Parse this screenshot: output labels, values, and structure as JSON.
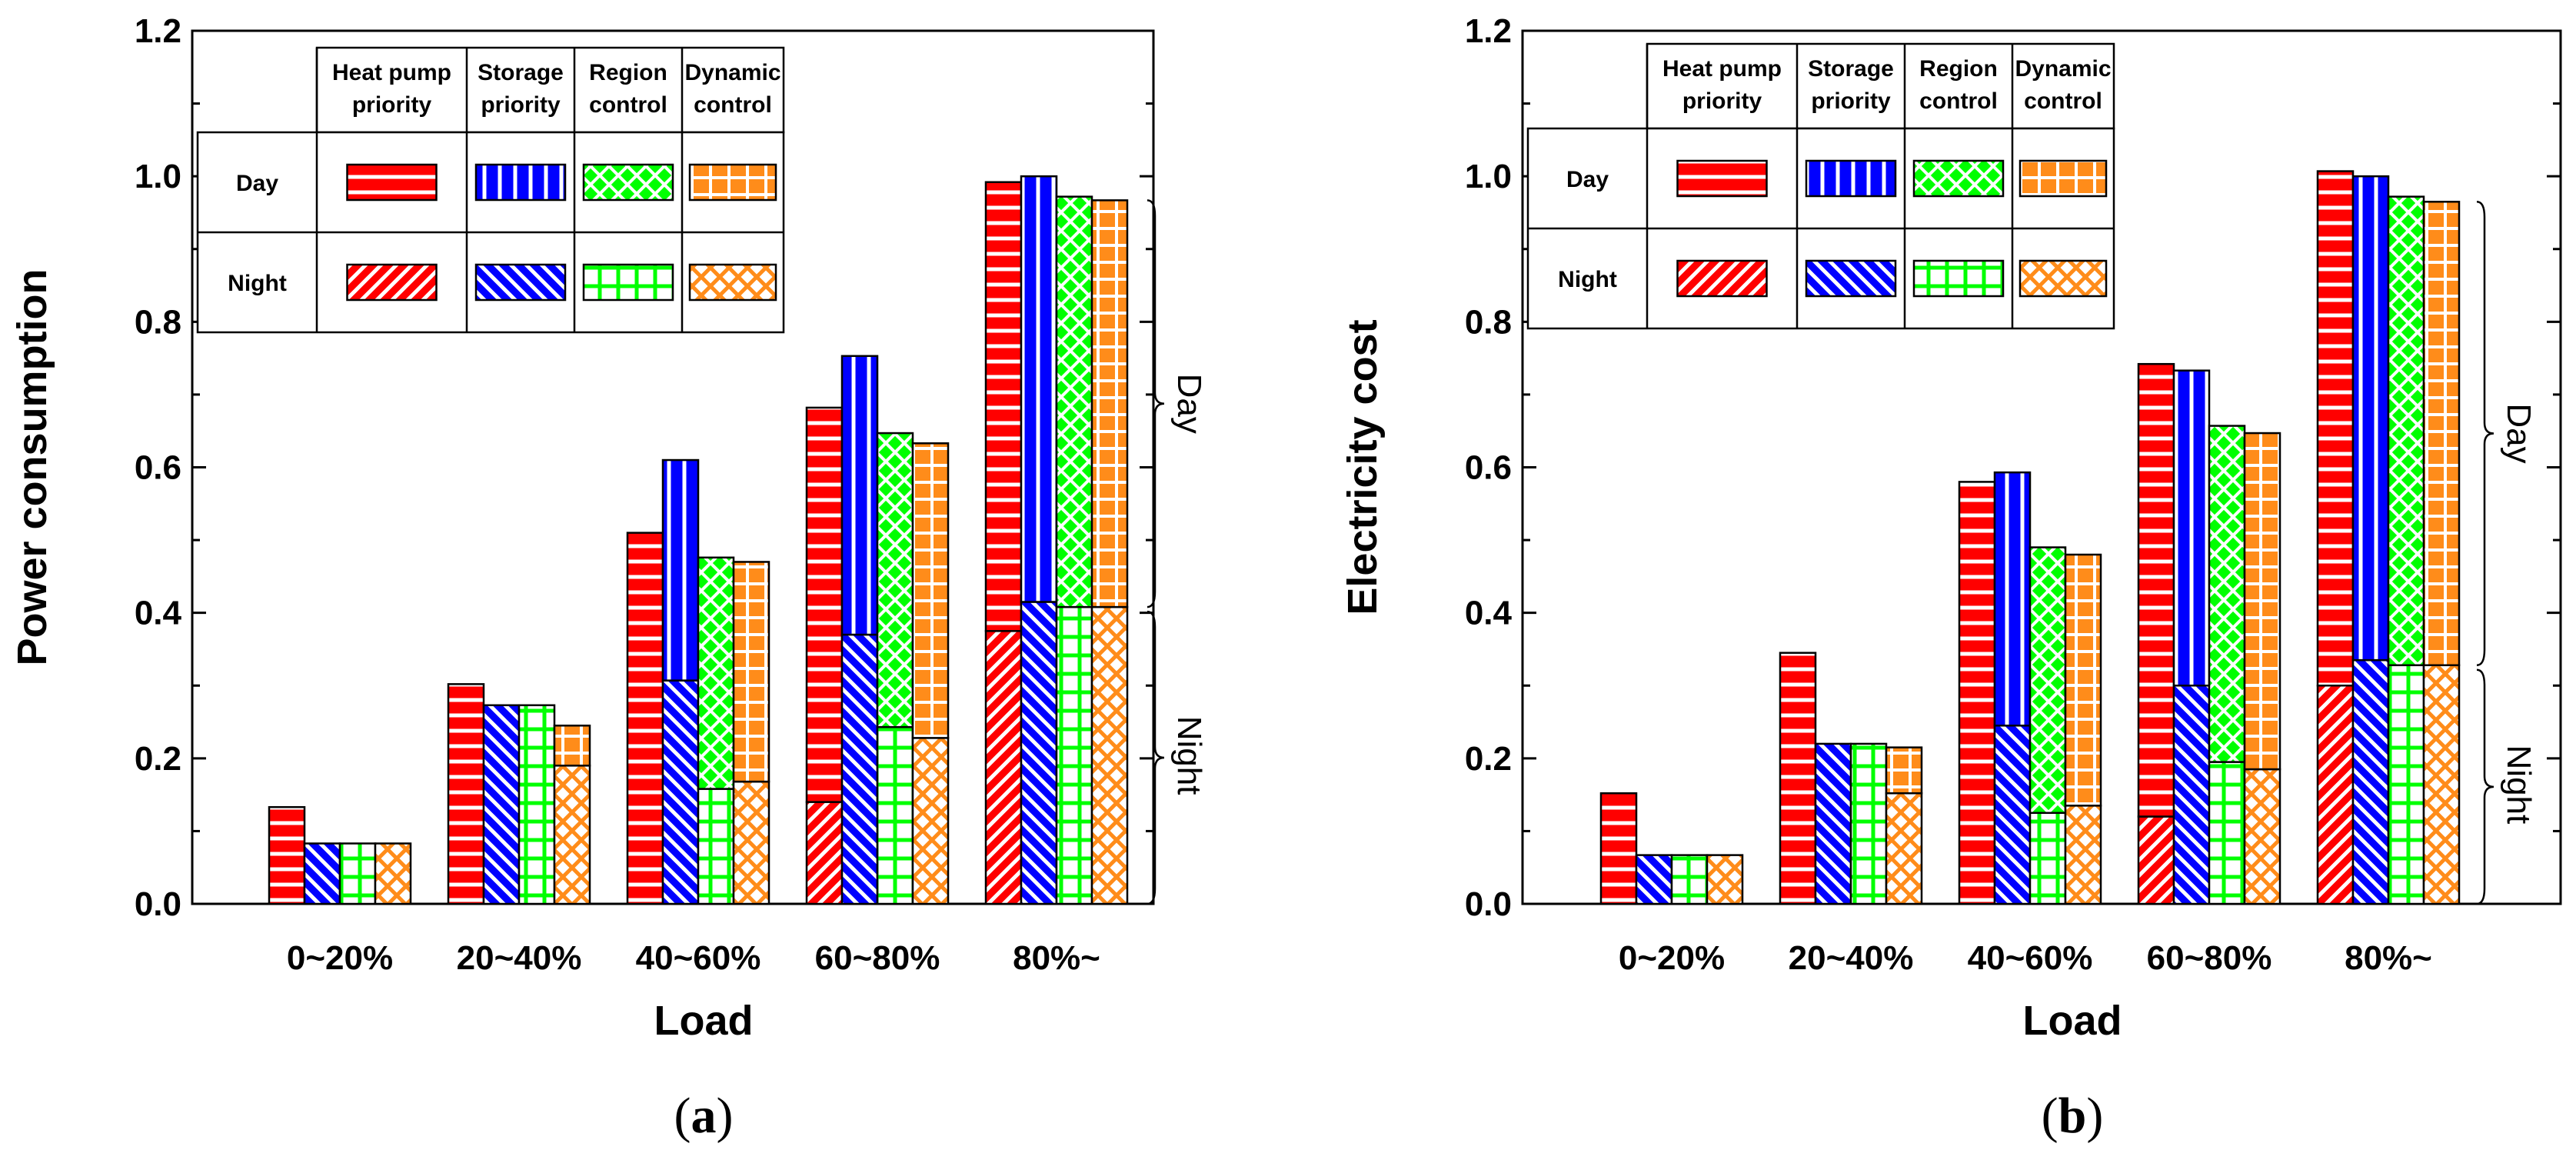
{
  "colors": {
    "heat_pump_priority": "#ff0000",
    "storage_priority": "#0000ff",
    "region_control": "#00ff00",
    "dynamic_control": "#ff8c1a"
  },
  "legend": {
    "columns": [
      "Heat pump priority",
      "Storage priority",
      "Region control",
      "Dynamic control"
    ],
    "column_lines": [
      [
        "Heat pump",
        "priority"
      ],
      [
        "Storage",
        "priority"
      ],
      [
        "Region",
        "control"
      ],
      [
        "Dynamic",
        "control"
      ]
    ],
    "rows": [
      "Day",
      "Night"
    ]
  },
  "brace_labels": {
    "day": "Day",
    "night": "Night"
  },
  "chart_data": [
    {
      "type": "bar",
      "stacked": true,
      "panel_label": "(a)",
      "panel_letter": "a",
      "xlabel": "Load",
      "ylabel": "Power consumption",
      "ylim": [
        0,
        1.2
      ],
      "yticks": [
        "0.0",
        "0.2",
        "0.4",
        "0.6",
        "0.8",
        "1.0",
        "1.2"
      ],
      "categories": [
        "0~20%",
        "20~40%",
        "40~60%",
        "60~80%",
        "80%~"
      ],
      "series": [
        {
          "name": "Heat pump priority",
          "night": [
            0.0,
            0.0,
            0.0,
            0.14,
            0.375
          ],
          "total": [
            0.133,
            0.302,
            0.51,
            0.682,
            0.992
          ]
        },
        {
          "name": "Storage priority",
          "night": [
            0.083,
            0.273,
            0.307,
            0.37,
            0.415
          ],
          "total": [
            0.083,
            0.273,
            0.61,
            0.753,
            1.0
          ]
        },
        {
          "name": "Region control",
          "night": [
            0.083,
            0.273,
            0.158,
            0.243,
            0.408
          ],
          "total": [
            0.083,
            0.273,
            0.476,
            0.647,
            0.972
          ]
        },
        {
          "name": "Dynamic control",
          "night": [
            0.083,
            0.19,
            0.168,
            0.228,
            0.408
          ],
          "total": [
            0.083,
            0.245,
            0.47,
            0.633,
            0.967
          ]
        }
      ]
    },
    {
      "type": "bar",
      "stacked": true,
      "panel_label": "(b)",
      "panel_letter": "b",
      "xlabel": "Load",
      "ylabel": "Electricity cost",
      "ylim": [
        0,
        1.2
      ],
      "yticks": [
        "0.0",
        "0.2",
        "0.4",
        "0.6",
        "0.8",
        "1.0",
        "1.2"
      ],
      "categories": [
        "0~20%",
        "20~40%",
        "40~60%",
        "60~80%",
        "80%~"
      ],
      "series": [
        {
          "name": "Heat pump priority",
          "night": [
            0.0,
            0.0,
            0.0,
            0.12,
            0.3
          ],
          "total": [
            0.152,
            0.345,
            0.58,
            0.742,
            1.007
          ]
        },
        {
          "name": "Storage priority",
          "night": [
            0.067,
            0.22,
            0.245,
            0.3,
            0.335
          ],
          "total": [
            0.067,
            0.22,
            0.593,
            0.733,
            1.0
          ]
        },
        {
          "name": "Region control",
          "night": [
            0.067,
            0.22,
            0.125,
            0.195,
            0.328
          ],
          "total": [
            0.067,
            0.22,
            0.49,
            0.657,
            0.972
          ]
        },
        {
          "name": "Dynamic control",
          "night": [
            0.067,
            0.152,
            0.135,
            0.185,
            0.328
          ],
          "total": [
            0.067,
            0.215,
            0.48,
            0.647,
            0.965
          ]
        }
      ]
    }
  ]
}
